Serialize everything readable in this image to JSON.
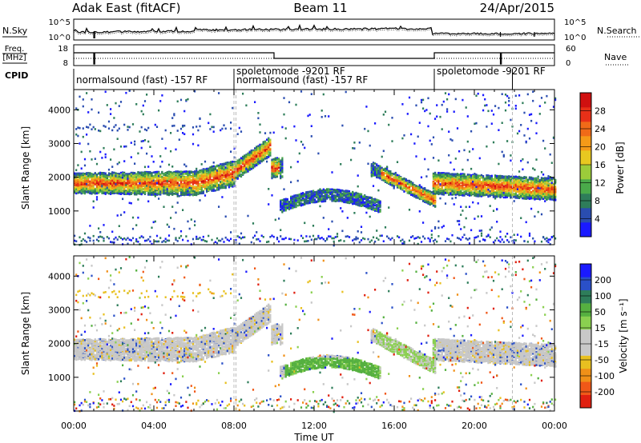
{
  "header": {
    "station": "Adak East (fitACF)",
    "beam": "Beam 11",
    "date": "24/Apr/2015"
  },
  "strip_labels": {
    "nsky": "N.Sky",
    "nsearch": "N.Search",
    "freq_line1": "Freq.",
    "freq_line2": "[MHz]",
    "nave": "Nave",
    "cpid": "CPID",
    "noise_tick_hi": "10^5",
    "noise_tick_lo": "10^0",
    "freq_tick_hi": "18",
    "freq_tick_lo": "8",
    "nave_tick_hi": "60",
    "nave_tick_lo": "0"
  },
  "cpid_segments": [
    {
      "label": "normalsound (fast) -157 RF",
      "start": 0.0,
      "end": 8.0
    },
    {
      "label": "spoletomode -9201 RF",
      "start": 8.0,
      "end": 10.0
    },
    {
      "label": "normalsound (fast) -157 RF",
      "start": 8.0,
      "end": 18.0
    },
    {
      "label": "spoletomode -9201 RF",
      "start": 18.0,
      "end": 21.9
    }
  ],
  "chart_data": [
    {
      "type": "heatmap",
      "name": "power",
      "ylabel": "Slant Range [km]",
      "xlabel": "Time UT",
      "xlim": [
        0,
        24
      ],
      "ylim": [
        0,
        4600
      ],
      "x_ticks": [
        "00:00",
        "04:00",
        "08:00",
        "12:00",
        "16:00",
        "20:00",
        "00:00"
      ],
      "y_ticks": [
        1000,
        2000,
        3000,
        4000
      ],
      "colorbar": {
        "label": "Power [dB]",
        "ticks": [
          "4",
          "8",
          "12",
          "16",
          "20",
          "24",
          "28"
        ],
        "colors": [
          "#1a1aff",
          "#2a4db0",
          "#2e7d5a",
          "#4aaa4a",
          "#9ccc3a",
          "#e8c820",
          "#f59a18",
          "#f06a18",
          "#e83018",
          "#d01010"
        ]
      }
    },
    {
      "type": "heatmap",
      "name": "velocity",
      "ylabel": "Slant Range [km]",
      "xlabel": "Time UT",
      "xlim": [
        0,
        24
      ],
      "ylim": [
        0,
        4600
      ],
      "x_ticks": [
        "00:00",
        "04:00",
        "08:00",
        "12:00",
        "16:00",
        "20:00",
        "00:00"
      ],
      "y_ticks": [
        1000,
        2000,
        3000,
        4000
      ],
      "colorbar": {
        "label": "Velocity [m s⁻¹]",
        "ticks": [
          "200",
          "100",
          "50",
          "15",
          "-15",
          "-50",
          "-100",
          "-200"
        ],
        "colors": [
          "#1a1aff",
          "#2a50c8",
          "#2e7d5a",
          "#55b040",
          "#8ad050",
          "#c8c8c8",
          "#c8c8c8",
          "#e8c020",
          "#f09018",
          "#f05818",
          "#e02010"
        ]
      }
    }
  ],
  "x_axis_label": "Time UT"
}
